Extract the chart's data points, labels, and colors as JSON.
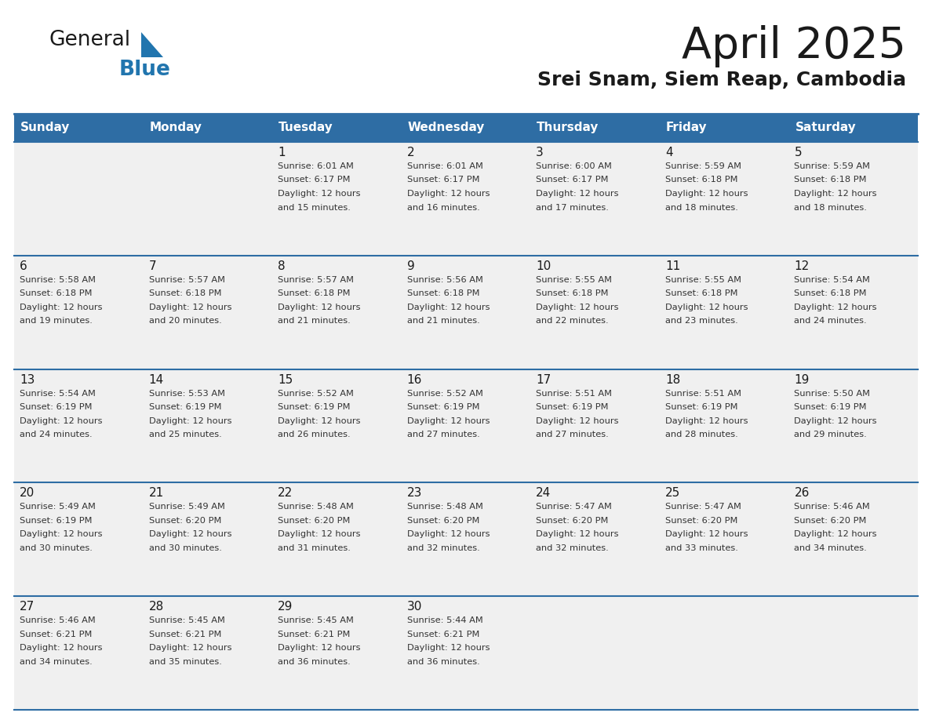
{
  "title": "April 2025",
  "subtitle": "Srei Snam, Siem Reap, Cambodia",
  "header_bg_color": "#2E6DA4",
  "header_text_color": "#FFFFFF",
  "cell_bg_color": "#F0F0F0",
  "divider_color": "#2E6DA4",
  "title_color": "#1a1a1a",
  "subtitle_color": "#1a1a1a",
  "text_color": "#333333",
  "day_num_color": "#1a1a1a",
  "logo_general_color": "#1a1a1a",
  "logo_blue_color": "#2175AE",
  "day_names": [
    "Sunday",
    "Monday",
    "Tuesday",
    "Wednesday",
    "Thursday",
    "Friday",
    "Saturday"
  ],
  "calendar_data": [
    [
      {
        "day": "",
        "lines": []
      },
      {
        "day": "",
        "lines": []
      },
      {
        "day": "1",
        "lines": [
          "Sunrise: 6:01 AM",
          "Sunset: 6:17 PM",
          "Daylight: 12 hours",
          "and 15 minutes."
        ]
      },
      {
        "day": "2",
        "lines": [
          "Sunrise: 6:01 AM",
          "Sunset: 6:17 PM",
          "Daylight: 12 hours",
          "and 16 minutes."
        ]
      },
      {
        "day": "3",
        "lines": [
          "Sunrise: 6:00 AM",
          "Sunset: 6:17 PM",
          "Daylight: 12 hours",
          "and 17 minutes."
        ]
      },
      {
        "day": "4",
        "lines": [
          "Sunrise: 5:59 AM",
          "Sunset: 6:18 PM",
          "Daylight: 12 hours",
          "and 18 minutes."
        ]
      },
      {
        "day": "5",
        "lines": [
          "Sunrise: 5:59 AM",
          "Sunset: 6:18 PM",
          "Daylight: 12 hours",
          "and 18 minutes."
        ]
      }
    ],
    [
      {
        "day": "6",
        "lines": [
          "Sunrise: 5:58 AM",
          "Sunset: 6:18 PM",
          "Daylight: 12 hours",
          "and 19 minutes."
        ]
      },
      {
        "day": "7",
        "lines": [
          "Sunrise: 5:57 AM",
          "Sunset: 6:18 PM",
          "Daylight: 12 hours",
          "and 20 minutes."
        ]
      },
      {
        "day": "8",
        "lines": [
          "Sunrise: 5:57 AM",
          "Sunset: 6:18 PM",
          "Daylight: 12 hours",
          "and 21 minutes."
        ]
      },
      {
        "day": "9",
        "lines": [
          "Sunrise: 5:56 AM",
          "Sunset: 6:18 PM",
          "Daylight: 12 hours",
          "and 21 minutes."
        ]
      },
      {
        "day": "10",
        "lines": [
          "Sunrise: 5:55 AM",
          "Sunset: 6:18 PM",
          "Daylight: 12 hours",
          "and 22 minutes."
        ]
      },
      {
        "day": "11",
        "lines": [
          "Sunrise: 5:55 AM",
          "Sunset: 6:18 PM",
          "Daylight: 12 hours",
          "and 23 minutes."
        ]
      },
      {
        "day": "12",
        "lines": [
          "Sunrise: 5:54 AM",
          "Sunset: 6:18 PM",
          "Daylight: 12 hours",
          "and 24 minutes."
        ]
      }
    ],
    [
      {
        "day": "13",
        "lines": [
          "Sunrise: 5:54 AM",
          "Sunset: 6:19 PM",
          "Daylight: 12 hours",
          "and 24 minutes."
        ]
      },
      {
        "day": "14",
        "lines": [
          "Sunrise: 5:53 AM",
          "Sunset: 6:19 PM",
          "Daylight: 12 hours",
          "and 25 minutes."
        ]
      },
      {
        "day": "15",
        "lines": [
          "Sunrise: 5:52 AM",
          "Sunset: 6:19 PM",
          "Daylight: 12 hours",
          "and 26 minutes."
        ]
      },
      {
        "day": "16",
        "lines": [
          "Sunrise: 5:52 AM",
          "Sunset: 6:19 PM",
          "Daylight: 12 hours",
          "and 27 minutes."
        ]
      },
      {
        "day": "17",
        "lines": [
          "Sunrise: 5:51 AM",
          "Sunset: 6:19 PM",
          "Daylight: 12 hours",
          "and 27 minutes."
        ]
      },
      {
        "day": "18",
        "lines": [
          "Sunrise: 5:51 AM",
          "Sunset: 6:19 PM",
          "Daylight: 12 hours",
          "and 28 minutes."
        ]
      },
      {
        "day": "19",
        "lines": [
          "Sunrise: 5:50 AM",
          "Sunset: 6:19 PM",
          "Daylight: 12 hours",
          "and 29 minutes."
        ]
      }
    ],
    [
      {
        "day": "20",
        "lines": [
          "Sunrise: 5:49 AM",
          "Sunset: 6:19 PM",
          "Daylight: 12 hours",
          "and 30 minutes."
        ]
      },
      {
        "day": "21",
        "lines": [
          "Sunrise: 5:49 AM",
          "Sunset: 6:20 PM",
          "Daylight: 12 hours",
          "and 30 minutes."
        ]
      },
      {
        "day": "22",
        "lines": [
          "Sunrise: 5:48 AM",
          "Sunset: 6:20 PM",
          "Daylight: 12 hours",
          "and 31 minutes."
        ]
      },
      {
        "day": "23",
        "lines": [
          "Sunrise: 5:48 AM",
          "Sunset: 6:20 PM",
          "Daylight: 12 hours",
          "and 32 minutes."
        ]
      },
      {
        "day": "24",
        "lines": [
          "Sunrise: 5:47 AM",
          "Sunset: 6:20 PM",
          "Daylight: 12 hours",
          "and 32 minutes."
        ]
      },
      {
        "day": "25",
        "lines": [
          "Sunrise: 5:47 AM",
          "Sunset: 6:20 PM",
          "Daylight: 12 hours",
          "and 33 minutes."
        ]
      },
      {
        "day": "26",
        "lines": [
          "Sunrise: 5:46 AM",
          "Sunset: 6:20 PM",
          "Daylight: 12 hours",
          "and 34 minutes."
        ]
      }
    ],
    [
      {
        "day": "27",
        "lines": [
          "Sunrise: 5:46 AM",
          "Sunset: 6:21 PM",
          "Daylight: 12 hours",
          "and 34 minutes."
        ]
      },
      {
        "day": "28",
        "lines": [
          "Sunrise: 5:45 AM",
          "Sunset: 6:21 PM",
          "Daylight: 12 hours",
          "and 35 minutes."
        ]
      },
      {
        "day": "29",
        "lines": [
          "Sunrise: 5:45 AM",
          "Sunset: 6:21 PM",
          "Daylight: 12 hours",
          "and 36 minutes."
        ]
      },
      {
        "day": "30",
        "lines": [
          "Sunrise: 5:44 AM",
          "Sunset: 6:21 PM",
          "Daylight: 12 hours",
          "and 36 minutes."
        ]
      },
      {
        "day": "",
        "lines": []
      },
      {
        "day": "",
        "lines": []
      },
      {
        "day": "",
        "lines": []
      }
    ]
  ]
}
